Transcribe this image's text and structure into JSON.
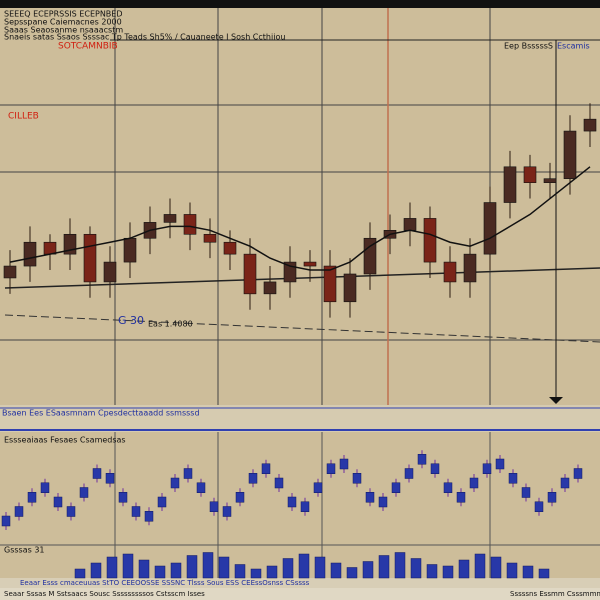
{
  "header": {
    "lines": [
      "SEEEQ ECEPRSSIS ECEPNBED",
      "Sepsspane Caiemacnes 2000",
      "Saaas Seaosanme nsaaacstm",
      "Snaeis satas Ssaos Ssssac  Tp  Teads Sh5% / Cauaneete I Sosh Ccthiiou"
    ],
    "symbol": "SOTCAMNBIB",
    "right_labels": [
      "Eep BsssssS",
      "Escamis"
    ]
  },
  "main_chart": {
    "label": "CILLEB",
    "level_label": "G 30",
    "level_value": "Eas 1.4080",
    "ylim": [
      0,
      100
    ],
    "open": [
      32,
      35,
      41,
      38,
      43,
      31,
      36,
      42,
      46,
      48,
      43,
      41,
      38,
      28,
      31,
      36,
      35,
      26,
      33,
      42,
      44,
      47,
      36,
      31,
      38,
      51,
      60,
      56,
      57,
      69
    ],
    "close": [
      35,
      41,
      38,
      43,
      31,
      36,
      42,
      46,
      48,
      43,
      41,
      38,
      28,
      31,
      36,
      35,
      26,
      33,
      42,
      44,
      47,
      36,
      31,
      38,
      51,
      60,
      56,
      57,
      69,
      72
    ],
    "high": [
      39,
      45,
      43,
      47,
      45,
      40,
      46,
      50,
      52,
      51,
      47,
      44,
      42,
      35,
      40,
      39,
      39,
      37,
      46,
      48,
      51,
      50,
      40,
      42,
      55,
      64,
      63,
      61,
      73,
      76
    ],
    "low": [
      28,
      31,
      34,
      34,
      27,
      27,
      32,
      38,
      42,
      39,
      37,
      34,
      24,
      24,
      27,
      31,
      22,
      22,
      29,
      38,
      40,
      32,
      27,
      27,
      34,
      47,
      52,
      52,
      53,
      65
    ],
    "ma": [
      36,
      37,
      38,
      39,
      40,
      41,
      42,
      44,
      45,
      45,
      44,
      42,
      40,
      37,
      35,
      34,
      34,
      36,
      40,
      43,
      44,
      43,
      41,
      40,
      42,
      45,
      48,
      52,
      56,
      60
    ]
  },
  "status_bar": "Bsaen Ees ESaasmnam Cpesdecttaaadd ssmsssd",
  "oscillator": {
    "label": "Essseaiaas Fesaes Csamedsas",
    "ylim": [
      0,
      100
    ],
    "values": [
      20,
      30,
      45,
      55,
      40,
      30,
      50,
      70,
      65,
      45,
      30,
      25,
      40,
      60,
      70,
      55,
      35,
      30,
      45,
      65,
      75,
      60,
      40,
      35,
      55,
      75,
      80,
      65,
      45,
      40,
      55,
      70,
      85,
      75,
      55,
      45,
      60,
      75,
      80,
      65,
      50,
      35,
      45,
      60,
      70
    ]
  },
  "volume": {
    "label": "Gsssas 31",
    "ylim": [
      0,
      100
    ],
    "values": [
      30,
      50,
      70,
      80,
      60,
      40,
      50,
      75,
      85,
      70,
      45,
      30,
      40,
      65,
      80,
      70,
      50,
      35,
      55,
      75,
      85,
      65,
      45,
      40,
      60,
      80,
      70,
      50,
      40,
      30
    ]
  },
  "footer": {
    "strip": "Eeaar Esss cmaceuuas StTO CEEOOSSE SSSNC Tlsss Sous ESS CEEssOsnss CSssss",
    "left": "Seaar Sssas M  Sstsaacs Sousc Sssssssssos Cstsscm Isses",
    "right": "Sssssns Essmm Csssmmnes"
  }
}
